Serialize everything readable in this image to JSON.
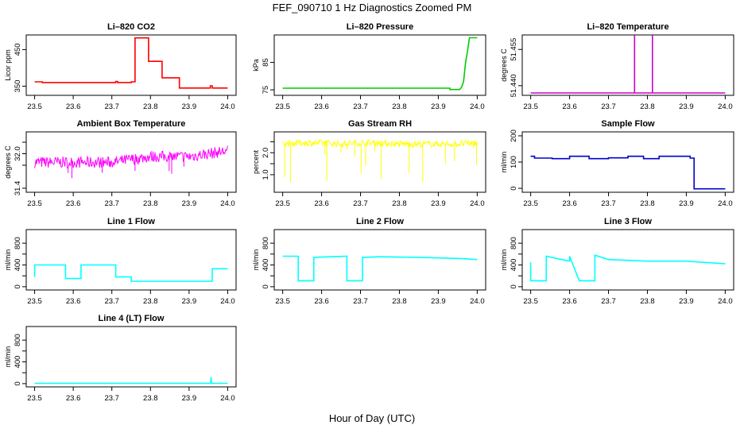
{
  "figure": {
    "title": "FEF_090710  1 Hz Diagnostics Zoomed PM",
    "xlabel": "Hour of Day (UTC)"
  },
  "chart_data": [
    {
      "id": "co2",
      "type": "line",
      "title": "Li–820 CO2",
      "ylabel": "Licor ppm",
      "color": "#ff0000",
      "xlim": [
        23.5,
        24.0
      ],
      "ylim": [
        325,
        490
      ],
      "xticks": [
        "23.5",
        "23.6",
        "23.7",
        "23.8",
        "23.9",
        "24.0"
      ],
      "yticks": [
        350,
        450
      ],
      "x": [
        23.5,
        23.52,
        23.52,
        23.71,
        23.71,
        23.715,
        23.715,
        23.75,
        23.75,
        23.76,
        23.76,
        23.795,
        23.795,
        23.83,
        23.83,
        23.875,
        23.875,
        23.955,
        23.955,
        23.96,
        23.96,
        24.0
      ],
      "y": [
        362,
        362,
        360,
        360,
        363,
        363,
        360,
        360,
        362,
        362,
        482,
        482,
        418,
        418,
        373,
        373,
        345,
        345,
        351,
        351,
        345,
        345
      ]
    },
    {
      "id": "pressure",
      "type": "line",
      "title": "Li–820 Pressure",
      "ylabel": "kPa",
      "color": "#00cc00",
      "xlim": [
        23.5,
        24.0
      ],
      "ylim": [
        73,
        95
      ],
      "xticks": [
        "23.5",
        "23.6",
        "23.7",
        "23.8",
        "23.9",
        "24.0"
      ],
      "yticks": [
        75,
        85
      ],
      "x": [
        23.5,
        23.93,
        23.93,
        23.955,
        23.96,
        23.965,
        23.97,
        23.975,
        23.98,
        24.0
      ],
      "y": [
        75.6,
        75.6,
        75.1,
        75.1,
        76,
        78,
        85,
        89,
        94,
        94
      ]
    },
    {
      "id": "licor_temp",
      "type": "line",
      "title": "Li–820 Temperature",
      "ylabel": "degrees C",
      "color": "#cc00cc",
      "xlim": [
        23.5,
        24.0
      ],
      "ylim": [
        51.436,
        51.461
      ],
      "xticks": [
        "23.5",
        "23.6",
        "23.7",
        "23.8",
        "23.9",
        "24.0"
      ],
      "yticks": [
        51.44,
        51.455
      ],
      "yticklabels": [
        "51.440",
        "51.455"
      ],
      "x": [
        23.5,
        23.767,
        23.767,
        23.767,
        23.813,
        23.813,
        23.813,
        24.0
      ],
      "y": [
        51.437,
        51.437,
        51.461,
        51.437,
        51.437,
        51.461,
        51.437,
        51.437
      ]
    },
    {
      "id": "ambient_temp",
      "type": "line",
      "title": "Ambient Box Temperature",
      "ylabel": "degrees C",
      "color": "#ff00ff",
      "xlim": [
        23.5,
        24.0
      ],
      "ylim": [
        31.33,
        32.38
      ],
      "xticks": [
        "23.5",
        "23.6",
        "23.7",
        "23.8",
        "23.9",
        "24.0"
      ],
      "yticks": [
        31.4,
        31.8,
        32.0,
        32.2
      ],
      "yticklabels": [
        "31.4",
        "",
        "32.0",
        ""
      ],
      "x": [
        23.5,
        23.55,
        23.6,
        23.65,
        23.7,
        23.75,
        23.8,
        23.85,
        23.9,
        23.95,
        24.0
      ],
      "y": [
        31.85,
        31.85,
        31.85,
        31.85,
        31.85,
        31.9,
        31.95,
        31.95,
        31.95,
        32.0,
        32.05
      ],
      "noise": 0.1,
      "spikes": 0.3
    },
    {
      "id": "rh",
      "type": "line",
      "title": "Gas Stream RH",
      "ylabel": "percent",
      "color": "#ffff00",
      "xlim": [
        23.5,
        24.0
      ],
      "ylim": [
        0.2,
        2.95
      ],
      "xticks": [
        "23.5",
        "23.6",
        "23.7",
        "23.8",
        "23.9",
        "24.0"
      ],
      "yticks": [
        1.0,
        1.5,
        2.0,
        2.5
      ],
      "yticklabels": [
        "1.0",
        "",
        "2.0",
        ""
      ],
      "x": [
        23.5,
        23.55,
        23.6,
        23.65,
        23.7,
        23.75,
        23.8,
        23.85,
        23.9,
        23.95,
        24.0
      ],
      "y": [
        2.4,
        2.45,
        2.45,
        2.4,
        2.45,
        2.45,
        2.4,
        2.4,
        2.4,
        2.4,
        2.45
      ],
      "noise": 0.15,
      "spikes": 1.8
    },
    {
      "id": "sample_flow",
      "type": "line",
      "title": "Sample Flow",
      "ylabel": "ml/min",
      "color": "#0000cc",
      "xlim": [
        23.5,
        24.0
      ],
      "ylim": [
        -15,
        215
      ],
      "xticks": [
        "23.5",
        "23.6",
        "23.7",
        "23.8",
        "23.9",
        "24.0"
      ],
      "yticks": [
        0,
        100,
        200
      ],
      "x": [
        23.5,
        23.51,
        23.51,
        23.555,
        23.555,
        23.6,
        23.6,
        23.65,
        23.65,
        23.7,
        23.7,
        23.75,
        23.75,
        23.79,
        23.79,
        23.83,
        23.83,
        23.91,
        23.91,
        23.92,
        23.92,
        24.0
      ],
      "y": [
        122,
        122,
        115,
        115,
        113,
        113,
        122,
        122,
        113,
        113,
        116,
        116,
        122,
        122,
        113,
        113,
        122,
        122,
        115,
        115,
        -2,
        -2
      ]
    },
    {
      "id": "line1",
      "type": "line",
      "title": "Line 1 Flow",
      "ylabel": "ml/min",
      "color": "#00ffff",
      "xlim": [
        23.5,
        24.0
      ],
      "ylim": [
        -60,
        1050
      ],
      "xticks": [
        "23.5",
        "23.6",
        "23.7",
        "23.8",
        "23.9",
        "24.0"
      ],
      "yticks": [
        0,
        200,
        400,
        600,
        800
      ],
      "yticklabels": [
        "0",
        "",
        "400",
        "",
        "800"
      ],
      "x": [
        23.5,
        23.5,
        23.58,
        23.58,
        23.62,
        23.62,
        23.71,
        23.71,
        23.75,
        23.75,
        23.96,
        23.96,
        24.0
      ],
      "y": [
        180,
        400,
        400,
        150,
        150,
        400,
        400,
        180,
        180,
        100,
        100,
        330,
        330
      ]
    },
    {
      "id": "line2",
      "type": "line",
      "title": "Line 2 Flow",
      "ylabel": "ml/min",
      "color": "#00ffff",
      "xlim": [
        23.5,
        24.0
      ],
      "ylim": [
        -60,
        1050
      ],
      "xticks": [
        "23.5",
        "23.6",
        "23.7",
        "23.8",
        "23.9",
        "24.0"
      ],
      "yticks": [
        0,
        200,
        400,
        600,
        800
      ],
      "yticklabels": [
        "0",
        "",
        "400",
        "",
        "800"
      ],
      "x": [
        23.5,
        23.54,
        23.54,
        23.58,
        23.58,
        23.665,
        23.665,
        23.705,
        23.705,
        23.75,
        23.85,
        23.95,
        24.0
      ],
      "y": [
        560,
        560,
        110,
        110,
        540,
        560,
        110,
        110,
        540,
        550,
        540,
        520,
        500
      ]
    },
    {
      "id": "line3",
      "type": "line",
      "title": "Line 3 Flow",
      "ylabel": "ml/min",
      "color": "#00ffff",
      "xlim": [
        23.5,
        24.0
      ],
      "ylim": [
        -60,
        1050
      ],
      "xticks": [
        "23.5",
        "23.6",
        "23.7",
        "23.8",
        "23.9",
        "24.0"
      ],
      "yticks": [
        0,
        200,
        400,
        600,
        800
      ],
      "yticklabels": [
        "0",
        "",
        "400",
        "",
        "800"
      ],
      "x": [
        23.5,
        23.5,
        23.505,
        23.505,
        23.54,
        23.54,
        23.58,
        23.6,
        23.6,
        23.625,
        23.625,
        23.665,
        23.665,
        23.7,
        23.8,
        23.9,
        24.0
      ],
      "y": [
        450,
        110,
        110,
        110,
        110,
        560,
        500,
        470,
        560,
        110,
        110,
        110,
        580,
        500,
        470,
        470,
        420
      ]
    },
    {
      "id": "line4",
      "type": "line",
      "title": "Line 4 (LT) Flow",
      "ylabel": "ml/min",
      "color": "#00ffff",
      "xlim": [
        23.5,
        24.0
      ],
      "ylim": [
        -60,
        1050
      ],
      "xticks": [
        "23.5",
        "23.6",
        "23.7",
        "23.8",
        "23.9",
        "24.0"
      ],
      "yticks": [
        0,
        200,
        400,
        600,
        800
      ],
      "yticklabels": [
        "0",
        "",
        "400",
        "",
        "800"
      ],
      "x": [
        23.5,
        23.956,
        23.957,
        23.958,
        23.96,
        24.0
      ],
      "y": [
        5,
        5,
        120,
        5,
        5,
        5
      ]
    }
  ]
}
